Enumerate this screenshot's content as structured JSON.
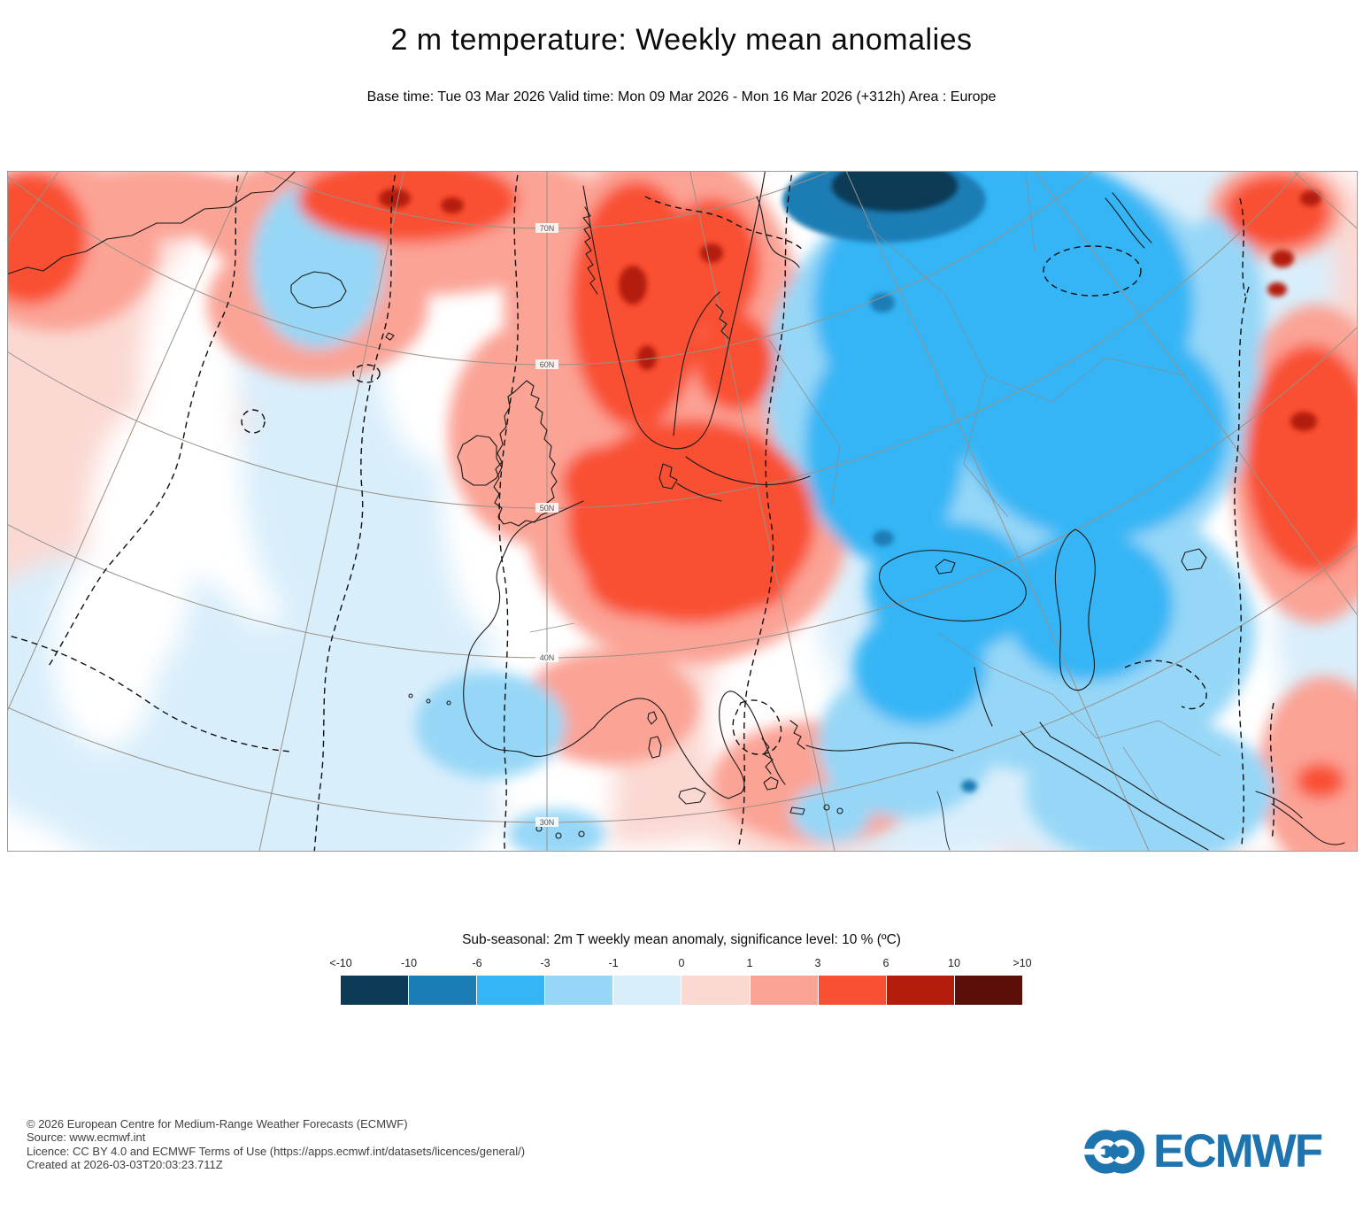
{
  "header": {
    "title": "2 m temperature: Weekly mean anomalies",
    "subtitle": "Base time: Tue 03 Mar 2026 Valid time: Mon 09 Mar 2026 - Mon 16 Mar 2026 (+312h) Area : Europe"
  },
  "map": {
    "graticule_labels": [
      "70N",
      "60N",
      "50N",
      "40N",
      "30N"
    ]
  },
  "legend": {
    "title": "Sub-seasonal: 2m T weekly mean anomaly, significance level: 10 % (ºC)",
    "ticks": [
      "<-10",
      "-10",
      "-6",
      "-3",
      "-1",
      "0",
      "1",
      "3",
      "6",
      "10",
      ">10"
    ],
    "colors": [
      "#0D3A57",
      "#1B7DB5",
      "#35B5F5",
      "#96D7F7",
      "#D9EEFB",
      "#FBD8D2",
      "#FBA395",
      "#F94F32",
      "#B41D0C",
      "#5A0F08"
    ]
  },
  "footer": {
    "lines": [
      "© 2026 European Centre for Medium-Range Weather Forecasts (ECMWF)",
      "Source: www.ecmwf.int",
      "Licence: CC BY 4.0 and ECMWF Terms of Use (https://apps.ecmwf.int/datasets/licences/general/)",
      "Created at 2026-03-03T20:03:23.711Z"
    ]
  },
  "logo": {
    "text": "ECMWF",
    "color": "#1E74AE"
  }
}
